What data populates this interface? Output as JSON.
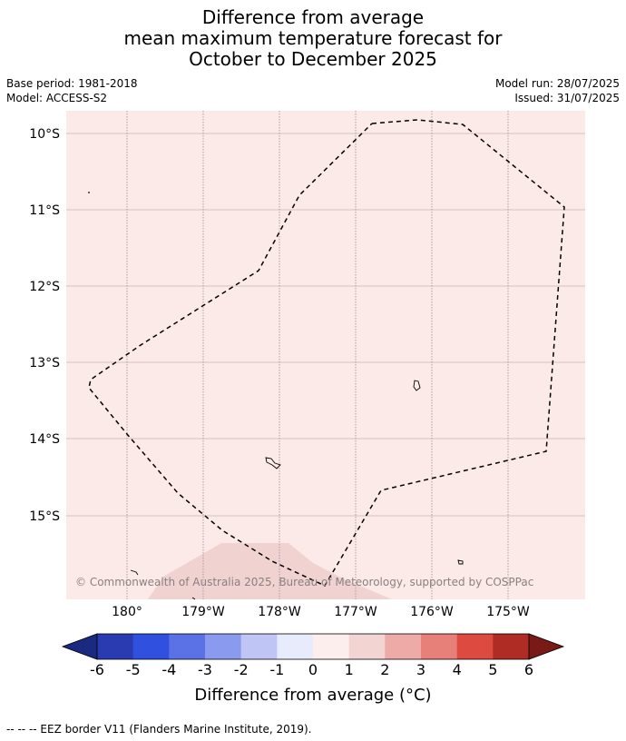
{
  "title": {
    "line1": "Difference from average",
    "line2": "mean maximum temperature forecast for",
    "line3": "October to December 2025"
  },
  "meta": {
    "base_period": "Base period: 1981-2018",
    "model": "Model: ACCESS-S2",
    "model_run": "Model run: 28/07/2025",
    "issued": "Issued: 31/07/2025"
  },
  "map": {
    "background_color": "#fbeae8",
    "anomaly_patch_color": "#f0d3d1",
    "lat_labels": [
      "10°S",
      "11°S",
      "12°S",
      "13°S",
      "14°S",
      "15°S"
    ],
    "lon_labels": [
      "180°",
      "179°W",
      "178°W",
      "177°W",
      "176°W",
      "175°W"
    ],
    "copyright": "© Commonwealth of Australia 2025, Bureau of Meteorology, supported by COSPPac"
  },
  "colorbar": {
    "title": "Difference from average (°C)",
    "tick_labels": [
      "-6",
      "-5",
      "-4",
      "-3",
      "-2",
      "-1",
      "0",
      "1",
      "2",
      "3",
      "4",
      "5",
      "6"
    ],
    "colors": [
      "#1a2a80",
      "#2a3ab0",
      "#3050e0",
      "#5a72e6",
      "#8a9aee",
      "#bfc6f6",
      "#e8ebfc",
      "#fceeec",
      "#f2d4d2",
      "#eeaaa6",
      "#e8807a",
      "#dc4a40",
      "#ae2c24",
      "#7a1a16"
    ]
  },
  "footnote": "--  --  -- EEZ border V11 (Flanders Marine Institute, 2019)."
}
